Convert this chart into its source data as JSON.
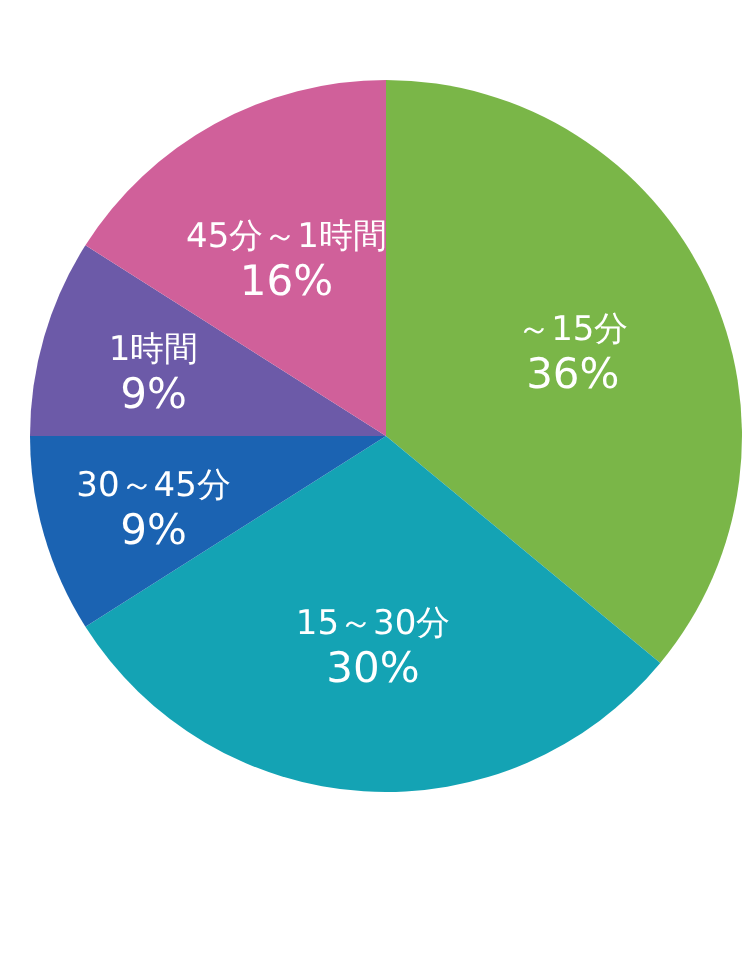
{
  "chart_data": {
    "type": "pie",
    "categories": [
      "～15分",
      "15～30分",
      "30～45分",
      "1時間",
      "45分～1時間"
    ],
    "values": [
      36,
      30,
      9,
      9,
      16
    ],
    "value_labels": [
      "36%",
      "30%",
      "9%",
      "9%",
      "16%"
    ],
    "colors": [
      "#7ab648",
      "#14a3b4",
      "#1b63b2",
      "#6c5aa8",
      "#d0609a"
    ],
    "legend": false
  }
}
